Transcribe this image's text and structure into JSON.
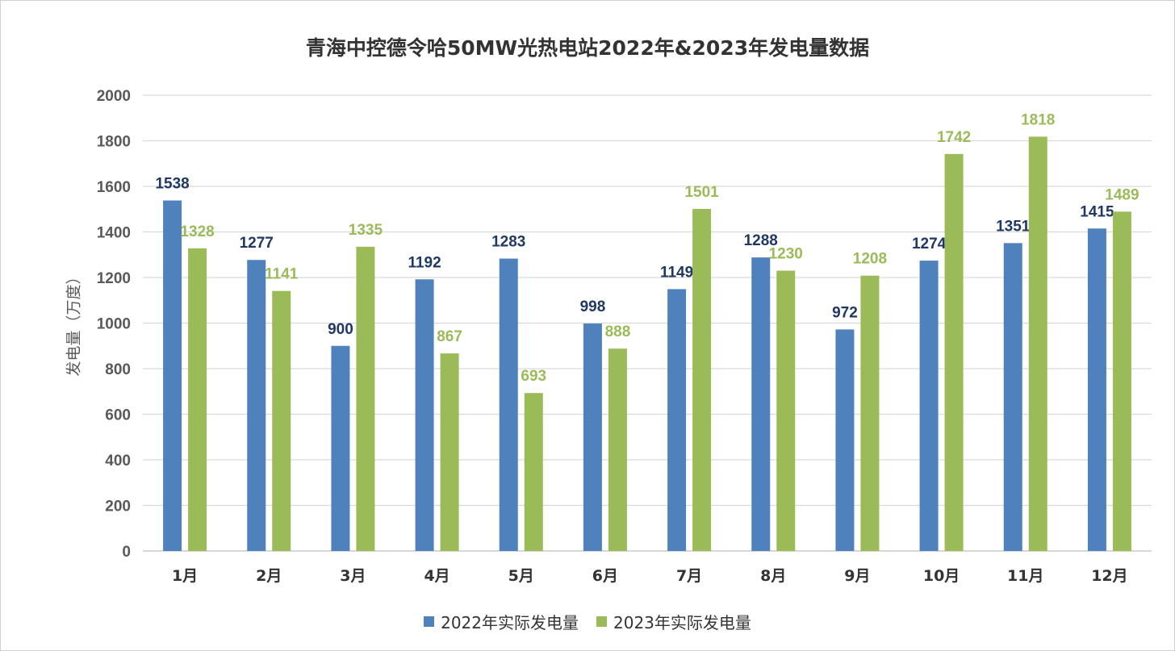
{
  "chart_data": {
    "type": "bar",
    "title": "青海中控德令哈50MW光热电站2022年&2023年发电量数据",
    "xlabel": "",
    "ylabel": "发电量（万度）",
    "ylim": [
      0,
      2000
    ],
    "yticks": [
      0,
      200,
      400,
      600,
      800,
      1000,
      1200,
      1400,
      1600,
      1800,
      2000
    ],
    "grid": true,
    "legend_position": "bottom",
    "categories": [
      "1月",
      "2月",
      "3月",
      "4月",
      "5月",
      "6月",
      "7月",
      "8月",
      "9月",
      "10月",
      "11月",
      "12月"
    ],
    "series": [
      {
        "name": "2022年实际发电量",
        "color": "#4f81bd",
        "label_color": "#1f3864",
        "values": [
          1538,
          1277,
          900,
          1192,
          1283,
          998,
          1149,
          1288,
          972,
          1274,
          1351,
          1415
        ]
      },
      {
        "name": "2023年实际发电量",
        "color": "#9bbb59",
        "label_color": "#9bbb59",
        "values": [
          1328,
          1141,
          1335,
          867,
          693,
          888,
          1501,
          1230,
          1208,
          1742,
          1818,
          1489
        ]
      }
    ]
  }
}
